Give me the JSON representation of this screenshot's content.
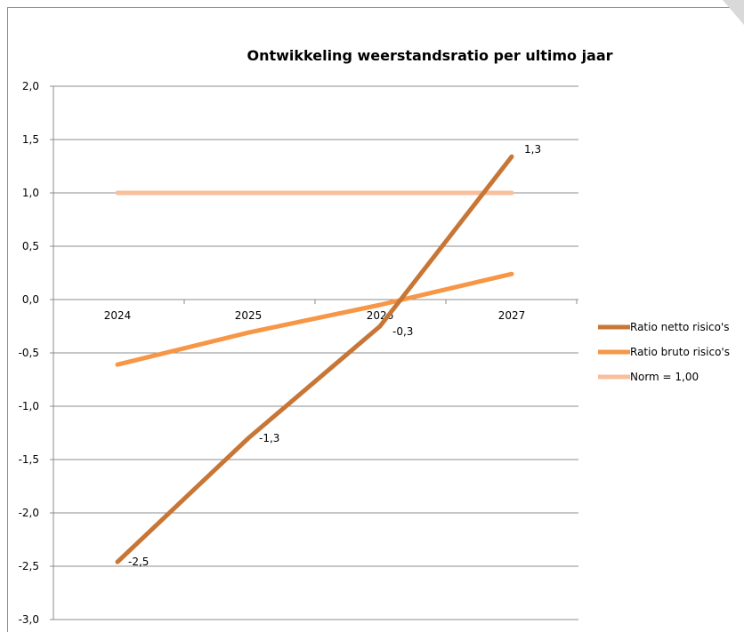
{
  "chart_data": {
    "type": "line",
    "title": "Ontwikkeling weerstandsratio per ultimo jaar",
    "categories": [
      "2024",
      "2025",
      "2026",
      "2027"
    ],
    "ylim": [
      -3.0,
      2.0
    ],
    "yticks": [
      "2,0",
      "1,5",
      "1,0",
      "0,5",
      "0,0",
      "-0,5",
      "-1,0",
      "-1,5",
      "-2,0",
      "-2,5",
      "-3,0"
    ],
    "ytick_values": [
      2.0,
      1.5,
      1.0,
      0.5,
      0.0,
      -0.5,
      -1.0,
      -1.5,
      -2.0,
      -2.5,
      -3.0
    ],
    "grid": true,
    "legend_position": "right",
    "series": [
      {
        "name": "Ratio netto risico's",
        "values": [
          -2.46,
          -1.3,
          -0.25,
          1.34
        ],
        "data_labels": [
          "-2,5",
          "-1,3",
          "-0,3",
          "1,3"
        ],
        "color": "#C77636"
      },
      {
        "name": "Ratio bruto risico's",
        "values": [
          -0.61,
          -0.31,
          -0.05,
          0.24
        ],
        "color": "#F79646"
      },
      {
        "name": "Norm = 1,00",
        "values": [
          1.0,
          1.0,
          1.0,
          1.0
        ],
        "color": "#F9BE9A"
      }
    ]
  }
}
